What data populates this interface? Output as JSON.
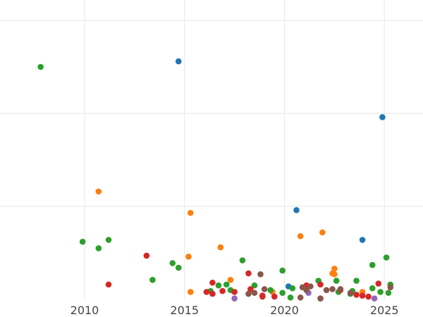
{
  "chart_data": {
    "type": "scatter",
    "title": "",
    "xlabel": "",
    "ylabel": "",
    "grid": true,
    "legend": "none",
    "xlim": [
      2010,
      2027
    ],
    "ylim": [
      0,
      31
    ],
    "xticks": [
      2010,
      2015,
      2020,
      2025
    ],
    "xtick_labels": [
      "2010",
      "2015",
      "2020",
      "2025"
    ],
    "yticks": [
      10,
      20,
      30
    ],
    "colors": {
      "blue": "#1f77b4",
      "orange": "#ff7f0e",
      "green": "#2ca02c",
      "red": "#d62728",
      "purple": "#9467bd",
      "brown": "#8c564b"
    },
    "series": [
      {
        "color": "#1f77b4",
        "points": [
          [
            2014.7,
            25.6
          ],
          [
            2024.9,
            19.6
          ],
          [
            2020.6,
            9.6
          ],
          [
            2023.9,
            6.4
          ],
          [
            2020.2,
            1.4
          ]
        ]
      },
      {
        "color": "#ff7f0e",
        "points": [
          [
            2010.7,
            11.6
          ],
          [
            2015.3,
            9.3
          ],
          [
            2020.8,
            6.8
          ],
          [
            2021.9,
            7.2
          ],
          [
            2016.8,
            5.6
          ],
          [
            2015.2,
            4.6
          ],
          [
            2022.5,
            3.3
          ],
          [
            2022.4,
            2.8
          ],
          [
            2022.5,
            2.7
          ],
          [
            2017.3,
            2.1
          ],
          [
            2015.3,
            0.8
          ],
          [
            2019.4,
            0.8
          ],
          [
            2023.9,
            0.8
          ]
        ]
      },
      {
        "color": "#2ca02c",
        "points": [
          [
            2007.8,
            25.0
          ],
          [
            2009.9,
            6.2
          ],
          [
            2010.7,
            5.5
          ],
          [
            2011.2,
            6.4
          ],
          [
            2013.4,
            2.1
          ],
          [
            2014.4,
            3.9
          ],
          [
            2014.7,
            3.4
          ],
          [
            2016.3,
            0.9
          ],
          [
            2016.7,
            1.5
          ],
          [
            2017.1,
            1.6
          ],
          [
            2017.3,
            1.0
          ],
          [
            2017.9,
            4.2
          ],
          [
            2018.5,
            1.5
          ],
          [
            2019.3,
            1.0
          ],
          [
            2019.9,
            3.1
          ],
          [
            2019.9,
            0.7
          ],
          [
            2020.3,
            0.2
          ],
          [
            2020.4,
            1.2
          ],
          [
            2021.7,
            2.0
          ],
          [
            2022.6,
            2.0
          ],
          [
            2022.7,
            0.8
          ],
          [
            2023.3,
            0.6
          ],
          [
            2023.4,
            0.9
          ],
          [
            2023.6,
            2.0
          ],
          [
            2024.4,
            1.2
          ],
          [
            2024.4,
            3.7
          ],
          [
            2024.8,
            0.8
          ],
          [
            2025.1,
            4.5
          ],
          [
            2025.2,
            0.7
          ],
          [
            2025.3,
            1.6
          ]
        ]
      },
      {
        "color": "#d62728",
        "points": [
          [
            2011.2,
            1.6
          ],
          [
            2013.1,
            4.7
          ],
          [
            2016.1,
            0.8
          ],
          [
            2016.4,
            1.8
          ],
          [
            2016.4,
            0.6
          ],
          [
            2016.9,
            0.9
          ],
          [
            2017.5,
            0.8
          ],
          [
            2018.2,
            2.8
          ],
          [
            2018.3,
            1.1
          ],
          [
            2018.9,
            0.3
          ],
          [
            2018.9,
            0.4
          ],
          [
            2019.5,
            0.3
          ],
          [
            2021.1,
            1.5
          ],
          [
            2021.8,
            1.6
          ],
          [
            2022.8,
            1.0
          ],
          [
            2023.6,
            0.5
          ],
          [
            2023.9,
            0.4
          ],
          [
            2024.2,
            0.3
          ],
          [
            2024.7,
            1.7
          ]
        ]
      },
      {
        "color": "#9467bd",
        "points": [
          [
            2017.5,
            0.1
          ],
          [
            2021.2,
            0.7
          ],
          [
            2021.8,
            0.1
          ],
          [
            2024.5,
            0.1
          ]
        ]
      },
      {
        "color": "#8c564b",
        "points": [
          [
            2018.2,
            0.6
          ],
          [
            2018.5,
            0.7
          ],
          [
            2018.8,
            2.7
          ],
          [
            2019.0,
            1.1
          ],
          [
            2020.8,
            0.2
          ],
          [
            2020.9,
            1.3
          ],
          [
            2021.1,
            1.0
          ],
          [
            2021.3,
            1.4
          ],
          [
            2021.8,
            0.1
          ],
          [
            2022.1,
            1.0
          ],
          [
            2022.4,
            1.1
          ],
          [
            2022.8,
            1.1
          ],
          [
            2023.3,
            0.7
          ],
          [
            2025.3,
            1.3
          ]
        ]
      }
    ]
  }
}
